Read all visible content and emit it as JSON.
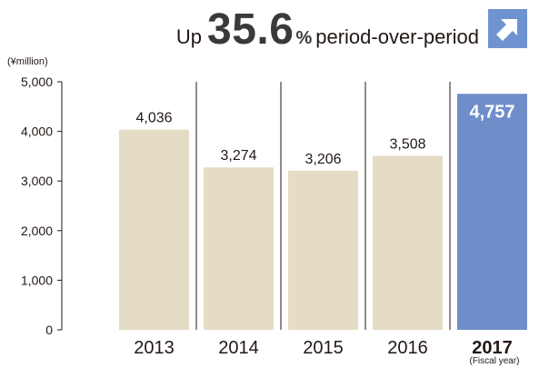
{
  "headline": {
    "prefix": "Up",
    "number": "35.6",
    "percent": "%",
    "suffix": "period-over-period",
    "icon": "arrow-up-right-icon",
    "icon_bg": "#6f93d1"
  },
  "colors": {
    "bar": "#e5dcc6",
    "highlight_bar": "#6f8ec9",
    "axis": "#231815",
    "divider": "#231815"
  },
  "chart_data": {
    "type": "bar",
    "title": "",
    "ylabel": "(¥million)",
    "xlabel": "(Fiscal year)",
    "categories": [
      "2013",
      "2014",
      "2015",
      "2016",
      "2017"
    ],
    "values": [
      4036,
      3274,
      3206,
      3508,
      4757
    ],
    "value_labels": [
      "4,036",
      "3,274",
      "3,206",
      "3,508",
      "4,757"
    ],
    "highlight_index": 4,
    "ylim": [
      0,
      5000
    ],
    "yticks": [
      0,
      1000,
      2000,
      3000,
      4000,
      5000
    ],
    "ytick_labels": [
      "0",
      "1,000",
      "2,000",
      "3,000",
      "4,000",
      "5,000"
    ],
    "grid": false,
    "legend": "none"
  }
}
